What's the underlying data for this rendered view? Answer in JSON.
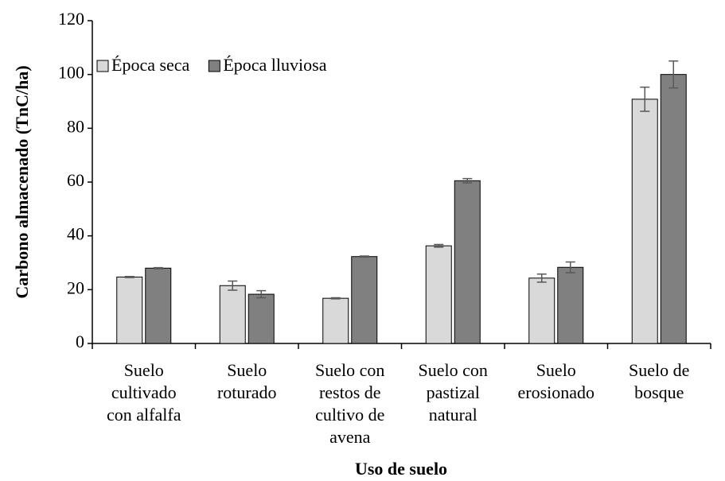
{
  "chart_data": {
    "type": "bar",
    "y_label": "Carbono almacenado (TnC/ha)",
    "x_label": "Uso de suelo",
    "categories": [
      [
        "Suelo",
        "cultivado",
        "con alfalfa"
      ],
      [
        "Suelo",
        "roturado"
      ],
      [
        "Suelo con",
        "restos de",
        "cultivo de",
        "avena"
      ],
      [
        "Suelo con",
        "pastizal",
        "natural"
      ],
      [
        "Suelo",
        "erosionado"
      ],
      [
        "Suelo de",
        "bosque"
      ]
    ],
    "series": [
      {
        "name": "Época seca",
        "color": "#d9d9d9",
        "values": [
          24.7,
          21.5,
          16.8,
          36.3,
          24.3,
          90.8
        ],
        "errors": [
          0.2,
          1.7,
          0.2,
          0.5,
          1.5,
          4.5
        ]
      },
      {
        "name": "Época lluviosa",
        "color": "#808080",
        "values": [
          28.0,
          18.3,
          32.3,
          60.5,
          28.3,
          100.0
        ],
        "errors": [
          0.2,
          1.3,
          0.2,
          0.8,
          2.0,
          5.0
        ]
      }
    ],
    "ylim": [
      0,
      120
    ],
    "yticks": [
      0,
      20,
      40,
      60,
      80,
      100,
      120
    ],
    "legend": "top-left",
    "grid": false
  }
}
